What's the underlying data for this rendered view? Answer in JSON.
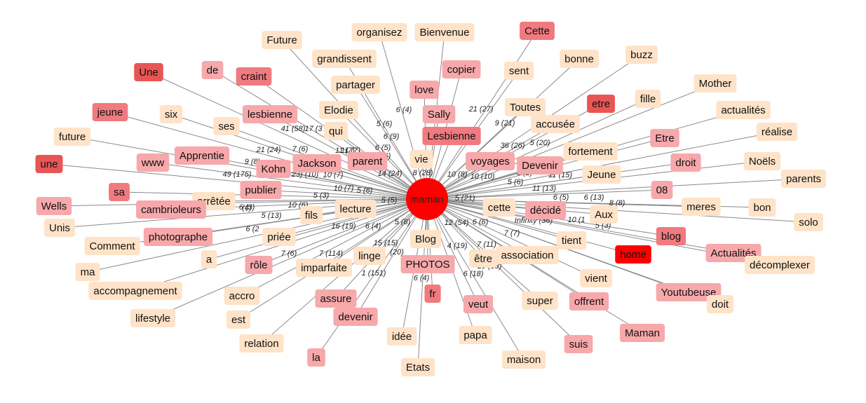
{
  "colors": {
    "level0": "#ffe3c8",
    "level1": "#f7a8ab",
    "level2": "#f07a7f",
    "level3": "#e85555",
    "level4": "#ff0000",
    "center": "#ff0000",
    "edge": "#8a8a8a"
  },
  "center": {
    "label": "maman"
  },
  "nodes": [
    {
      "label": "organisez",
      "level": 0
    },
    {
      "label": "Bienvenue",
      "level": 0
    },
    {
      "label": "Cette",
      "level": 2
    },
    {
      "label": "Future",
      "level": 0
    },
    {
      "label": "grandissent",
      "level": 0
    },
    {
      "label": "bonne",
      "level": 0
    },
    {
      "label": "buzz",
      "level": 0
    },
    {
      "label": "Une",
      "level": 3
    },
    {
      "label": "de",
      "level": 1
    },
    {
      "label": "craint",
      "level": 2
    },
    {
      "label": "copier",
      "level": 1
    },
    {
      "label": "sent",
      "level": 0
    },
    {
      "label": "partager",
      "level": 0
    },
    {
      "label": "Mother",
      "level": 0
    },
    {
      "label": "love",
      "level": 1
    },
    {
      "label": "fille",
      "level": 0
    },
    {
      "label": "Toutes",
      "level": 0
    },
    {
      "label": "etre",
      "level": 3
    },
    {
      "label": "actualités",
      "level": 0
    },
    {
      "label": "jeune",
      "level": 2
    },
    {
      "label": "six",
      "level": 0
    },
    {
      "label": "lesbienne",
      "level": 1
    },
    {
      "label": "Elodie",
      "level": 0
    },
    {
      "label": "Sally",
      "level": 1
    },
    {
      "label": "accusée",
      "level": 0
    },
    {
      "label": "ses",
      "level": 0
    },
    {
      "label": "qui",
      "level": 0
    },
    {
      "label": "Lesbienne",
      "level": 2
    },
    {
      "label": "réalise",
      "level": 0
    },
    {
      "label": "future",
      "level": 0
    },
    {
      "label": "Etre",
      "level": 1
    },
    {
      "label": "fortement",
      "level": 0
    },
    {
      "label": "Apprentie",
      "level": 1
    },
    {
      "label": "www",
      "level": 1
    },
    {
      "label": "vie",
      "level": 0
    },
    {
      "label": "Noëls",
      "level": 0
    },
    {
      "label": "une",
      "level": 3
    },
    {
      "label": "Jackson",
      "level": 1
    },
    {
      "label": "parent",
      "level": 1
    },
    {
      "label": "voyages",
      "level": 1
    },
    {
      "label": "Devenir",
      "level": 1
    },
    {
      "label": "droit",
      "level": 1
    },
    {
      "label": "Kohn",
      "level": 1
    },
    {
      "label": "Jeune",
      "level": 0
    },
    {
      "label": "parents",
      "level": 0
    },
    {
      "label": "publier",
      "level": 1
    },
    {
      "label": "sa",
      "level": 2
    },
    {
      "label": "08",
      "level": 1
    },
    {
      "label": "arrêtée",
      "level": 0
    },
    {
      "label": "Wells",
      "level": 1
    },
    {
      "label": "cambrioleurs",
      "level": 1
    },
    {
      "label": "lecture",
      "level": 0
    },
    {
      "label": "cette",
      "level": 0
    },
    {
      "label": "décidé",
      "level": 1
    },
    {
      "label": "meres",
      "level": 0
    },
    {
      "label": "bon",
      "level": 0
    },
    {
      "label": "fils",
      "level": 0
    },
    {
      "label": "Aux",
      "level": 0
    },
    {
      "label": "solo",
      "level": 0
    },
    {
      "label": "Unis",
      "level": 0
    },
    {
      "label": "photographe",
      "level": 1
    },
    {
      "label": "blog",
      "level": 2
    },
    {
      "label": "priée",
      "level": 0
    },
    {
      "label": "tient",
      "level": 0
    },
    {
      "label": "Comment",
      "level": 0
    },
    {
      "label": "Blog",
      "level": 0
    },
    {
      "label": "home",
      "level": 4
    },
    {
      "label": "Actualités",
      "level": 1
    },
    {
      "label": "a",
      "level": 0
    },
    {
      "label": "linge",
      "level": 0
    },
    {
      "label": "association",
      "level": 0
    },
    {
      "label": "être",
      "level": 0
    },
    {
      "label": "décomplexer",
      "level": 0
    },
    {
      "label": "rôle",
      "level": 1
    },
    {
      "label": "imparfaite",
      "level": 0
    },
    {
      "label": "PHOTOS",
      "level": 1
    },
    {
      "label": "ma",
      "level": 0
    },
    {
      "label": "vient",
      "level": 0
    },
    {
      "label": "accompagnement",
      "level": 0
    },
    {
      "label": "Youtubeuse",
      "level": 1
    },
    {
      "label": "doit",
      "level": 0
    },
    {
      "label": "accro",
      "level": 0
    },
    {
      "label": "fr",
      "level": 2
    },
    {
      "label": "assure",
      "level": 1
    },
    {
      "label": "super",
      "level": 0
    },
    {
      "label": "offrent",
      "level": 1
    },
    {
      "label": "veut",
      "level": 1
    },
    {
      "label": "lifestyle",
      "level": 0
    },
    {
      "label": "est",
      "level": 0
    },
    {
      "label": "devenir",
      "level": 1
    },
    {
      "label": "Maman",
      "level": 1
    },
    {
      "label": "relation",
      "level": 0
    },
    {
      "label": "idée",
      "level": 0
    },
    {
      "label": "papa",
      "level": 0
    },
    {
      "label": "suis",
      "level": 1
    },
    {
      "label": "maison",
      "level": 0
    },
    {
      "label": "la",
      "level": 1
    },
    {
      "label": "Etats",
      "level": 0
    }
  ],
  "edge_labels": [
    "6 (4)",
    "5 (6)",
    "6 (9)",
    "6 (5)",
    "21 (27)",
    "9 (21)",
    "5 (20)",
    "36 (26)",
    "41 (58)",
    "17 (3",
    "21 (24)",
    "7 (6)",
    "11 (7)",
    "7 (6)",
    "9 (8)",
    "23) (10)",
    "49 (175)",
    "14 (24)",
    "8 (28)",
    "10 (8)",
    "10 (10)",
    "11 (15)",
    "5 (6)",
    "11 (13)",
    "10 (7)",
    "5 (3)",
    "10 (6)",
    "6 (5)",
    "6 (13)",
    "5 (13)",
    "6 (3)",
    "16 (19)",
    "6 (4)",
    "5 (8)",
    "12 (54)",
    "6 (6)",
    "Infinity (36)",
    "10 (1",
    "5 (3)",
    "6 (2",
    "7 (6)",
    "7 (114)",
    "15 (15)",
    "(20)",
    "4 (19)",
    "7 (11)",
    "10 (38)",
    "1 (151)",
    "6 (4)",
    "6 (18)",
    "7 (7)",
    "5 (21)",
    "10 (7)",
    "11 (7)",
    "5 (5)",
    "7 (6)",
    "8 (8)",
    "(4)",
    "6 (2)",
    "5 (6)"
  ]
}
